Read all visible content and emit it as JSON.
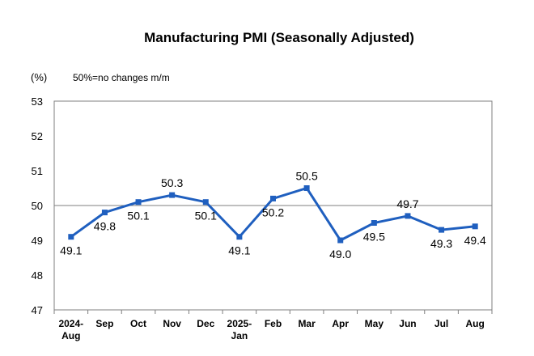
{
  "chart_data": {
    "type": "line",
    "title": "Manufacturing PMI (Seasonally Adjusted)",
    "ylabel": "(%)",
    "annotation": "50%=no changes m/m",
    "categories": [
      [
        "2024-",
        "Aug"
      ],
      [
        "Sep"
      ],
      [
        "Oct"
      ],
      [
        "Nov"
      ],
      [
        "Dec"
      ],
      [
        "2025-",
        "Jan"
      ],
      [
        "Feb"
      ],
      [
        "Mar"
      ],
      [
        "Apr"
      ],
      [
        "May"
      ],
      [
        "Jun"
      ],
      [
        "Jul"
      ],
      [
        "Aug"
      ]
    ],
    "series": [
      {
        "values": [
          49.1,
          49.8,
          50.1,
          50.3,
          50.1,
          49.1,
          50.2,
          50.5,
          49.0,
          49.5,
          49.7,
          49.3,
          49.4
        ],
        "labels": [
          "49.1",
          "49.8",
          "50.1",
          "50.3",
          "50.1",
          "49.1",
          "50.2",
          "50.5",
          "49.0",
          "49.5",
          "49.7",
          "49.3",
          "49.4"
        ],
        "color": "#1f5fbf"
      }
    ],
    "ylim": [
      47,
      53
    ],
    "yticks": [
      47,
      48,
      49,
      50,
      51,
      52,
      53
    ],
    "reference_line": 50,
    "grid": false,
    "legend": "none"
  }
}
